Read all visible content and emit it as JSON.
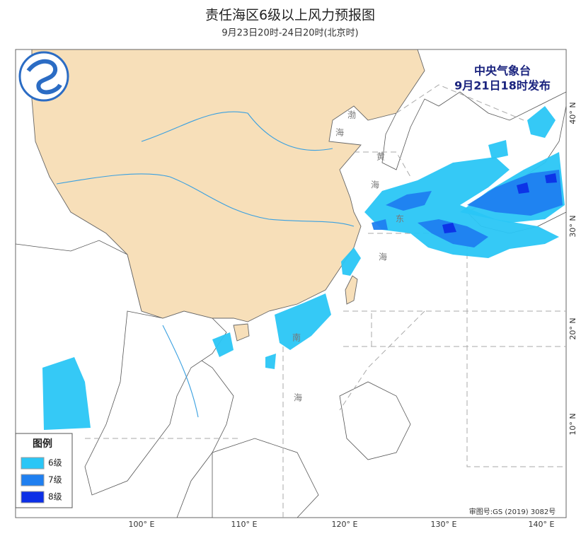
{
  "header": {
    "title": "责任海区6级以上风力预报图",
    "subtitle": "9月23日20时-24日20时(北京时)"
  },
  "agency": {
    "name": "中央气象台",
    "issued": "9月21日18时发布"
  },
  "legend": {
    "title": "图例",
    "items": [
      {
        "label": "6级",
        "color": "#2ac6f6"
      },
      {
        "label": "7级",
        "color": "#1f7ff0"
      },
      {
        "label": "8级",
        "color": "#0c2fe6"
      }
    ]
  },
  "sea_labels": [
    "渤",
    "海",
    "黄",
    "海",
    "东",
    "海",
    "南",
    "海"
  ],
  "lon_labels": [
    "100° E",
    "110° E",
    "120° E",
    "130° E",
    "140° E"
  ],
  "lat_labels": [
    "40° N",
    "30° N",
    "20° N",
    "10° N"
  ],
  "footer": "审图号:GS (2019) 3082号"
}
